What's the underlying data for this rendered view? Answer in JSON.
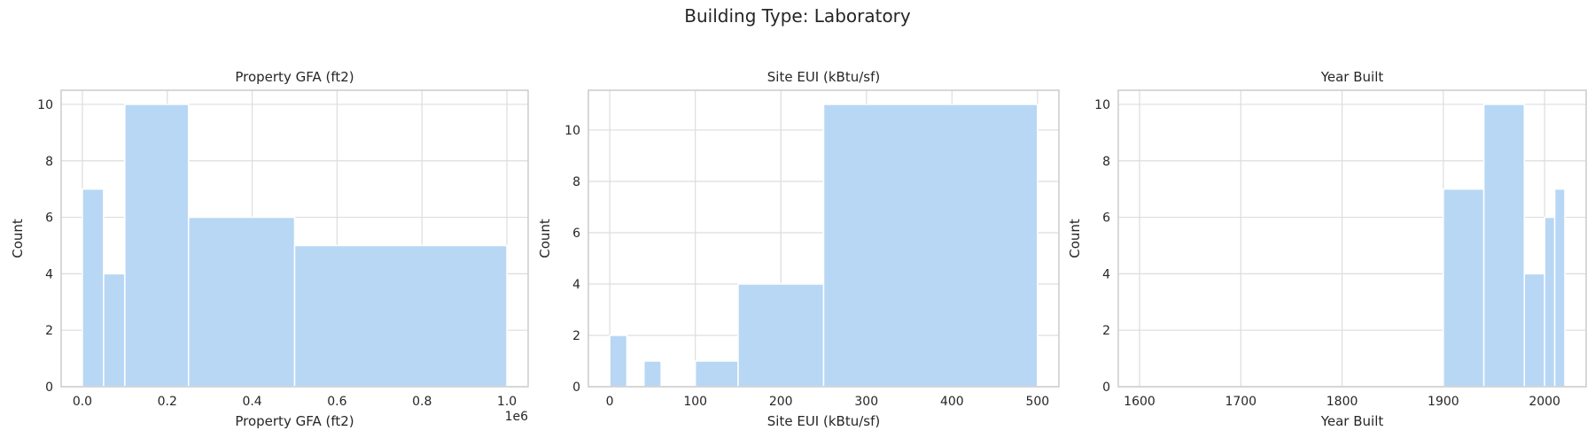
{
  "figure": {
    "suptitle": "Building Type: Laboratory",
    "bar_color": "#b7d7f4",
    "grid_color": "#dddddd",
    "spine_color": "#cccccc"
  },
  "chart_data": [
    {
      "type": "bar",
      "title": "Property GFA (ft2)",
      "xlabel": "Property GFA (ft2)",
      "ylabel": "Count",
      "offset_text": "1e6",
      "xlim": [
        -0.05,
        1.05
      ],
      "ylim": [
        0,
        10.5
      ],
      "xticks": [
        0.0,
        0.2,
        0.4,
        0.6,
        0.8,
        1.0
      ],
      "xtick_labels": [
        "0.0",
        "0.2",
        "0.4",
        "0.6",
        "0.8",
        "1.0"
      ],
      "yticks": [
        0,
        2,
        4,
        6,
        8,
        10
      ],
      "grid": true,
      "bins": [
        {
          "start": 0.0,
          "end": 0.05,
          "count": 7
        },
        {
          "start": 0.05,
          "end": 0.1,
          "count": 4
        },
        {
          "start": 0.1,
          "end": 0.25,
          "count": 10
        },
        {
          "start": 0.25,
          "end": 0.5,
          "count": 6
        },
        {
          "start": 0.5,
          "end": 1.0,
          "count": 5
        }
      ]
    },
    {
      "type": "bar",
      "title": "Site EUI (kBtu/sf)",
      "xlabel": "Site EUI (kBtu/sf)",
      "ylabel": "Count",
      "offset_text": "",
      "xlim": [
        -25,
        525
      ],
      "ylim": [
        0,
        11.55
      ],
      "xticks": [
        0,
        100,
        200,
        300,
        400,
        500
      ],
      "xtick_labels": [
        "0",
        "100",
        "200",
        "300",
        "400",
        "500"
      ],
      "yticks": [
        0,
        2,
        4,
        6,
        8,
        10
      ],
      "grid": true,
      "bins": [
        {
          "start": 0,
          "end": 20,
          "count": 2
        },
        {
          "start": 40,
          "end": 60,
          "count": 1
        },
        {
          "start": 100,
          "end": 150,
          "count": 1
        },
        {
          "start": 150,
          "end": 250,
          "count": 4
        },
        {
          "start": 250,
          "end": 500,
          "count": 11
        }
      ]
    },
    {
      "type": "bar",
      "title": "Year Built",
      "xlabel": "Year Built",
      "ylabel": "Count",
      "offset_text": "",
      "xlim": [
        1579,
        2041
      ],
      "ylim": [
        0,
        10.5
      ],
      "xticks": [
        1600,
        1700,
        1800,
        1900,
        2000
      ],
      "xtick_labels": [
        "1600",
        "1700",
        "1800",
        "1900",
        "2000"
      ],
      "yticks": [
        0,
        2,
        4,
        6,
        8,
        10
      ],
      "grid": true,
      "bins": [
        {
          "start": 1900,
          "end": 1940,
          "count": 7
        },
        {
          "start": 1940,
          "end": 1980,
          "count": 10
        },
        {
          "start": 1980,
          "end": 2000,
          "count": 4
        },
        {
          "start": 2000,
          "end": 2010,
          "count": 6
        },
        {
          "start": 2010,
          "end": 2020,
          "count": 7
        }
      ]
    }
  ]
}
